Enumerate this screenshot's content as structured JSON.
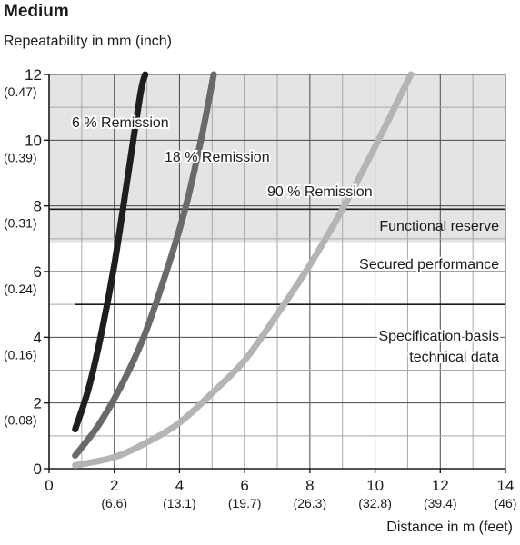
{
  "header": {
    "title": "Medium",
    "ylabel": "Repeatability in mm (inch)",
    "xlabel": "Distance in m (feet)"
  },
  "chart_data": {
    "type": "line",
    "title": "Medium",
    "xlabel": "Distance in m (feet)",
    "ylabel": "Repeatability in mm (inch)",
    "xlim": [
      0,
      14
    ],
    "ylim": [
      0,
      12
    ],
    "grid": true,
    "x_ticks": [
      {
        "value": 0,
        "label": "0",
        "sub": ""
      },
      {
        "value": 2,
        "label": "2",
        "sub": "(6.6)"
      },
      {
        "value": 4,
        "label": "4",
        "sub": "(13.1)"
      },
      {
        "value": 6,
        "label": "6",
        "sub": "(19.7)"
      },
      {
        "value": 8,
        "label": "8",
        "sub": "(26.3)"
      },
      {
        "value": 10,
        "label": "10",
        "sub": "(32.8)"
      },
      {
        "value": 12,
        "label": "12",
        "sub": "(39.4)"
      },
      {
        "value": 14,
        "label": "14",
        "sub": "(46)"
      }
    ],
    "y_ticks": [
      {
        "value": 0,
        "label": "0",
        "sub": ""
      },
      {
        "value": 2,
        "label": "2",
        "sub": "(0.08)"
      },
      {
        "value": 4,
        "label": "4",
        "sub": "(0.16)"
      },
      {
        "value": 6,
        "label": "6",
        "sub": "(0.24)"
      },
      {
        "value": 8,
        "label": "8",
        "sub": "(0.31)"
      },
      {
        "value": 10,
        "label": "10",
        "sub": "(0.39)"
      },
      {
        "value": 12,
        "label": "12",
        "sub": "(0.47)"
      }
    ],
    "regions": [
      {
        "name": "functional-reserve",
        "label": "Functional reserve",
        "y_from": 6.9,
        "y_to": 12,
        "color": "#e4e4e4"
      }
    ],
    "boundaries": [
      {
        "name": "reserve-boundary",
        "y": 7.9,
        "x_from": 0,
        "x_to": 14
      },
      {
        "name": "spec-boundary",
        "y": 5,
        "x_from": 0.8,
        "x_to": 14
      }
    ],
    "annotations": [
      {
        "name": "annotation-secured-performance",
        "text": "Secured performance"
      },
      {
        "name": "annotation-spec-basis-1",
        "text": "Specification basis"
      },
      {
        "name": "annotation-spec-basis-2",
        "text": "technical data"
      }
    ],
    "series": [
      {
        "name": "6 % Remission",
        "color": "#1e1e1e",
        "x": [
          0.8,
          1.2,
          1.6,
          2.0,
          2.4,
          2.8,
          2.95
        ],
        "y": [
          1.2,
          2.4,
          4.1,
          6.2,
          8.8,
          11.4,
          12.0
        ]
      },
      {
        "name": "18 % Remission",
        "color": "#6a6a6a",
        "x": [
          0.8,
          1.5,
          2.2,
          2.9,
          3.6,
          4.2,
          4.7,
          5.05
        ],
        "y": [
          0.4,
          1.3,
          2.5,
          4.0,
          6.0,
          8.0,
          10.2,
          12.0
        ]
      },
      {
        "name": "90 % Remission",
        "color": "#b4b4b4",
        "x": [
          0.8,
          2.0,
          3.0,
          4.0,
          5.0,
          6.0,
          7.0,
          8.0,
          9.0,
          10.0,
          11.1
        ],
        "y": [
          0.1,
          0.35,
          0.8,
          1.4,
          2.3,
          3.3,
          4.7,
          6.2,
          7.9,
          9.8,
          12.0
        ]
      }
    ]
  }
}
